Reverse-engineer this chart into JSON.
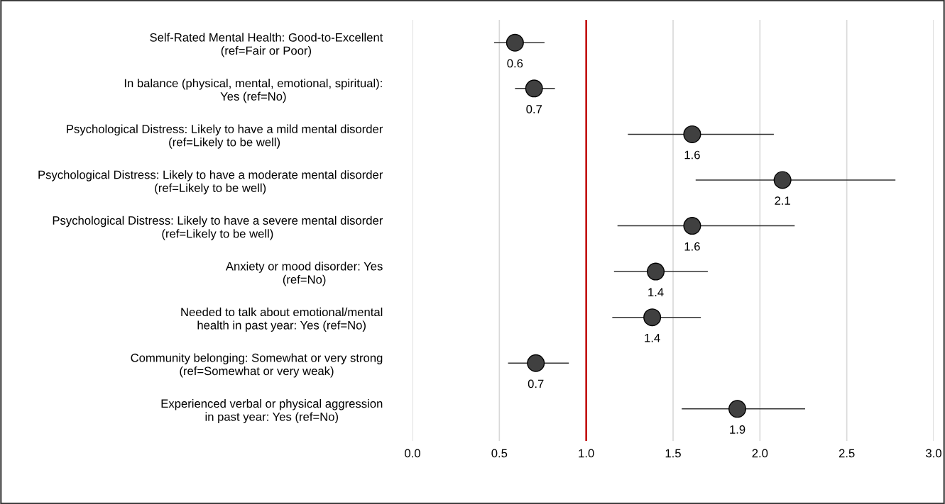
{
  "chart_data": {
    "type": "scatter",
    "orientation": "horizontal",
    "categories": [
      "Self-Rated Mental Health: Good-to-Excellent\n(ref=Fair or Poor)",
      "In balance (physical, mental, emotional, spiritual):\nYes (ref=No)",
      "Psychological Distress: Likely to have a mild mental disorder\n(ref=Likely to be well)",
      "Psychological Distress: Likely to have a moderate mental disorder\n(ref=Likely to be well)",
      "Psychological Distress: Likely to have a severe mental disorder\n(ref=Likely to be well)",
      "Anxiety or mood disorder: Yes\n(ref=No)",
      "Needed to talk about emotional/mental\nhealth in past year: Yes (ref=No)",
      "Community belonging: Somewhat or very strong\n(ref=Somewhat or very weak)",
      "Experienced verbal or physical aggression\nin past year: Yes (ref=No)"
    ],
    "values": [
      0.59,
      0.7,
      1.61,
      2.13,
      1.61,
      1.4,
      1.38,
      0.71,
      1.87
    ],
    "errors": [
      [
        0.47,
        0.76
      ],
      [
        0.59,
        0.82
      ],
      [
        1.24,
        2.08
      ],
      [
        1.63,
        2.78
      ],
      [
        1.18,
        2.2
      ],
      [
        1.16,
        1.7
      ],
      [
        1.15,
        1.66
      ],
      [
        0.55,
        0.9
      ],
      [
        1.55,
        2.26
      ]
    ],
    "value_labels": [
      "0.6",
      "0.7",
      "1.6",
      "2.1",
      "1.6",
      "1.4",
      "1.4",
      "0.7",
      "1.9"
    ],
    "color": "#404040",
    "marker": "circle",
    "xlim": [
      0,
      3.0
    ],
    "xticks": [
      {
        "value": 0,
        "label": "0.0"
      },
      {
        "value": 0.5,
        "label": "0.5"
      },
      {
        "value": 1.0,
        "label": "1.0"
      },
      {
        "value": 1.5,
        "label": "1.5"
      },
      {
        "value": 2.0,
        "label": "2.0"
      },
      {
        "value": 2.5,
        "label": "2.5"
      },
      {
        "value": 3.0,
        "label": "3.0"
      }
    ],
    "grid": "x",
    "ref_lines": [
      {
        "axis": "x",
        "value": 1.0,
        "color": "#c00000"
      }
    ]
  }
}
